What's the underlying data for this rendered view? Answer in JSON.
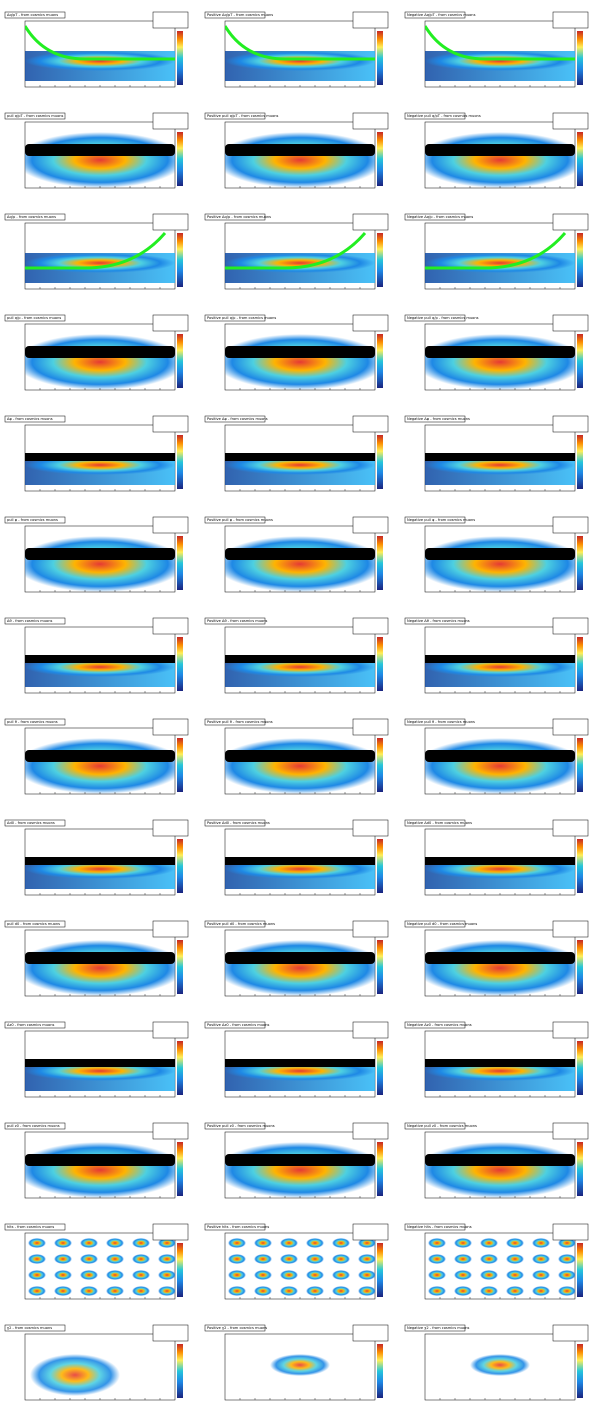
{
  "panels": [
    "Δq/pT - from cosmics muons",
    "Positive Δq/pT - from cosmics muons",
    "Negative Δq/pT - from cosmics muons",
    "pull q/pT - from cosmics muons",
    "Positive pull q/pT - from cosmics muons",
    "Negative pull q/pT - from cosmics muons",
    "Δq/p - from cosmics muons",
    "Positive Δq/p - from cosmics muons",
    "Negative Δq/p - from cosmics muons",
    "pull q/p - from cosmics muons",
    "Positive pull q/p - from cosmics muons",
    "Negative pull q/p - from cosmics muons",
    "Δφ - from cosmics muons",
    "Positive Δφ - from cosmics muons",
    "Negative Δφ - from cosmics muons",
    "pull φ - from cosmics muons",
    "Positive pull φ - from cosmics muons",
    "Negative pull φ - from cosmics muons",
    "Δθ - from cosmics muons",
    "Positive Δθ - from cosmics muons",
    "Negative Δθ - from cosmics muons",
    "pull θ - from cosmics muons",
    "Positive pull θ - from cosmics muons",
    "Negative pull θ - from cosmics muons",
    "Δd0 - from cosmics muons",
    "Positive Δd0 - from cosmics muons",
    "Negative Δd0 - from cosmics muons",
    "pull d0 - from cosmics muons",
    "Positive pull d0 - from cosmics muons",
    "Negative pull d0 - from cosmics muons",
    "Δz0 - from cosmics muons",
    "Positive Δz0 - from cosmics muons",
    "Negative Δz0 - from cosmics muons",
    "pull z0 - from cosmics muons",
    "Positive pull z0 - from cosmics muons",
    "Negative pull z0 - from cosmics muons",
    "hits - from cosmics muons",
    "Positive hits - from cosmics muons",
    "Negative hits - from cosmics muons",
    "χ2 - from cosmics muons",
    "Positive χ2 - from cosmics muons",
    "Negative χ2 - from cosmics muons"
  ]
}
